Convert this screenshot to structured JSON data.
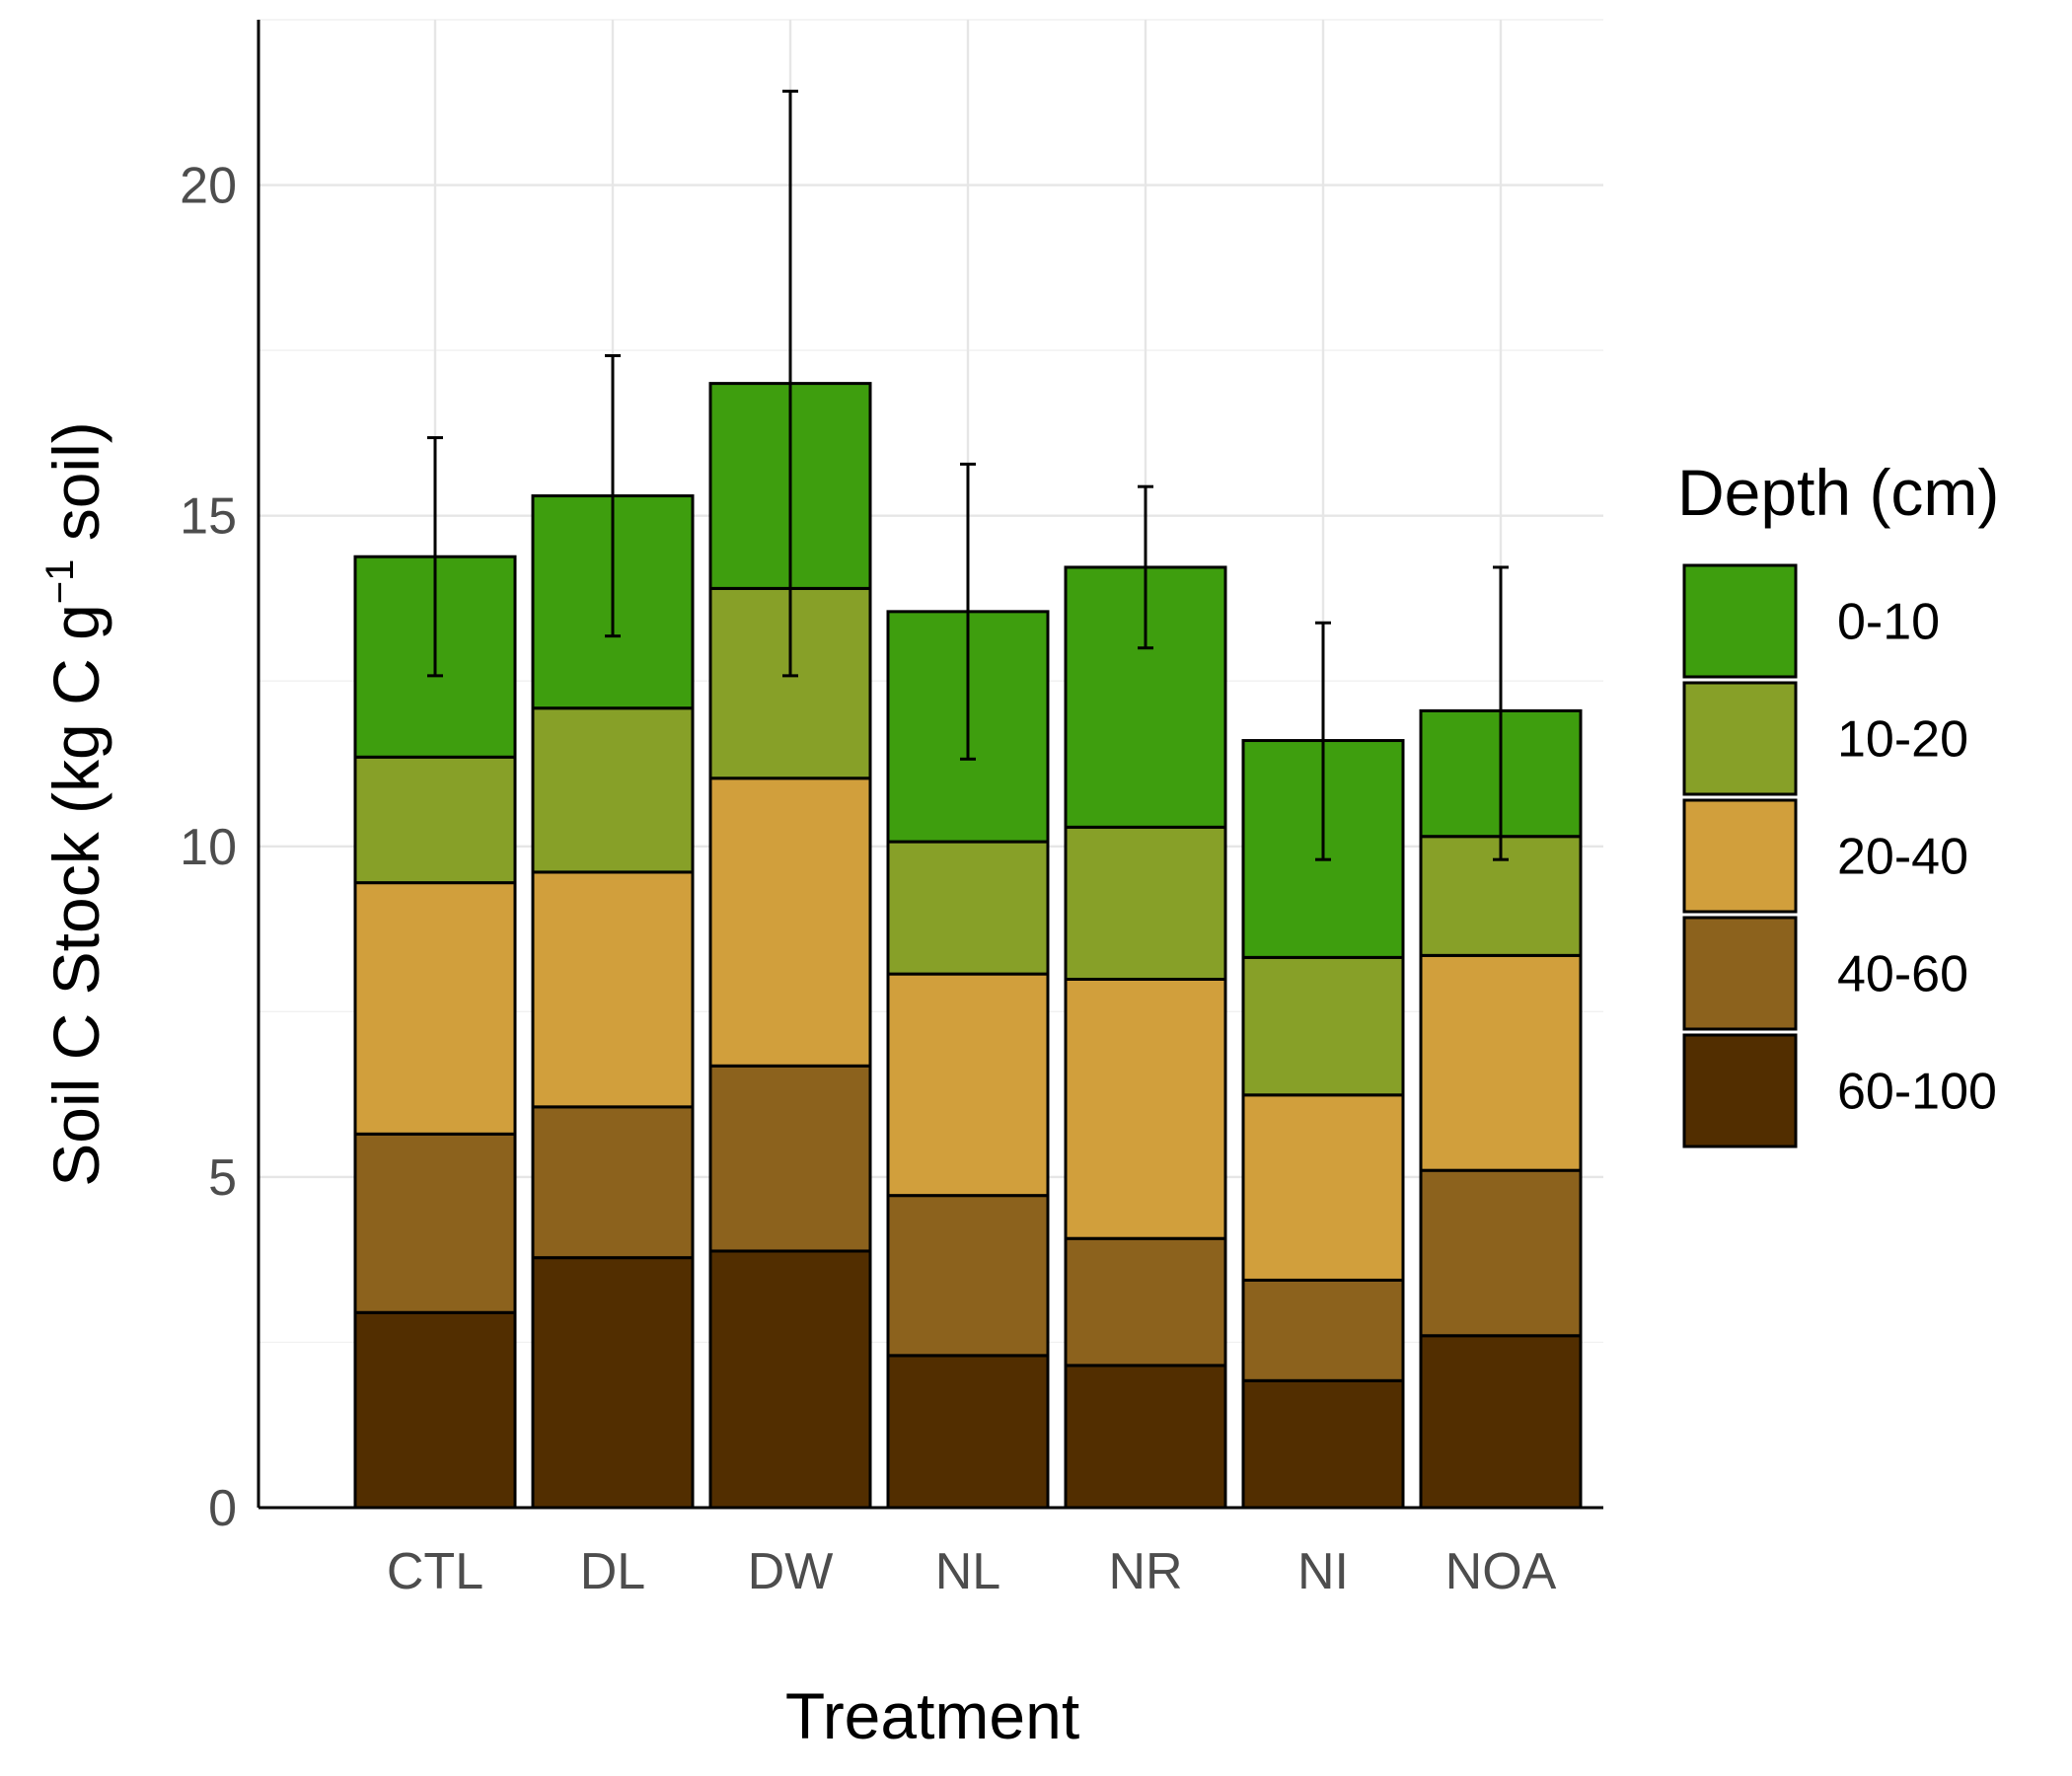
{
  "chart_data": {
    "type": "bar",
    "stacked": true,
    "xlabel": "Treatment",
    "ylabel": {
      "prefix": "Soil C Stock (kg C g",
      "superscript": "−1",
      "suffix": " soil)"
    },
    "ylim": [
      0,
      22.5
    ],
    "yticks": [
      0,
      5,
      10,
      15,
      20
    ],
    "grid": true,
    "legend_position": "right",
    "legend_title": "Depth (cm)",
    "categories": [
      "CTL",
      "DL",
      "DW",
      "NL",
      "NR",
      "NI",
      "NOA"
    ],
    "series": [
      {
        "name": "60-100",
        "color": "#522e00",
        "values": [
          2.95,
          3.78,
          3.88,
          2.3,
          2.15,
          1.92,
          2.6
        ]
      },
      {
        "name": "40-60",
        "color": "#8c621d",
        "values": [
          2.7,
          2.28,
          2.8,
          2.42,
          1.92,
          1.52,
          2.5
        ]
      },
      {
        "name": "20-40",
        "color": "#d19f3c",
        "values": [
          3.8,
          3.55,
          4.35,
          3.35,
          3.92,
          2.8,
          3.25
        ]
      },
      {
        "name": "10-20",
        "color": "#87a028",
        "values": [
          1.9,
          2.48,
          2.87,
          2.0,
          2.3,
          2.08,
          1.8
        ]
      },
      {
        "name": "0-10",
        "color": "#3e9e0e",
        "values": [
          3.03,
          3.21,
          3.1,
          3.48,
          3.93,
          3.28,
          1.9
        ]
      }
    ],
    "legend_order": [
      "0-10",
      "10-20",
      "20-40",
      "40-60",
      "60-100"
    ],
    "error_bars": [
      {
        "category": "CTL",
        "mean": 14.38,
        "low": 12.58,
        "high": 16.18
      },
      {
        "category": "DL",
        "mean": 15.3,
        "low": 13.18,
        "high": 17.42
      },
      {
        "category": "DW",
        "mean": 17.0,
        "low": 12.58,
        "high": 21.42
      },
      {
        "category": "NL",
        "mean": 13.55,
        "low": 11.32,
        "high": 15.78
      },
      {
        "category": "NR",
        "mean": 14.22,
        "low": 13.0,
        "high": 15.44
      },
      {
        "category": "NI",
        "mean": 11.6,
        "low": 9.8,
        "high": 13.38
      },
      {
        "category": "NOA",
        "mean": 12.05,
        "low": 9.8,
        "high": 14.22
      }
    ]
  }
}
